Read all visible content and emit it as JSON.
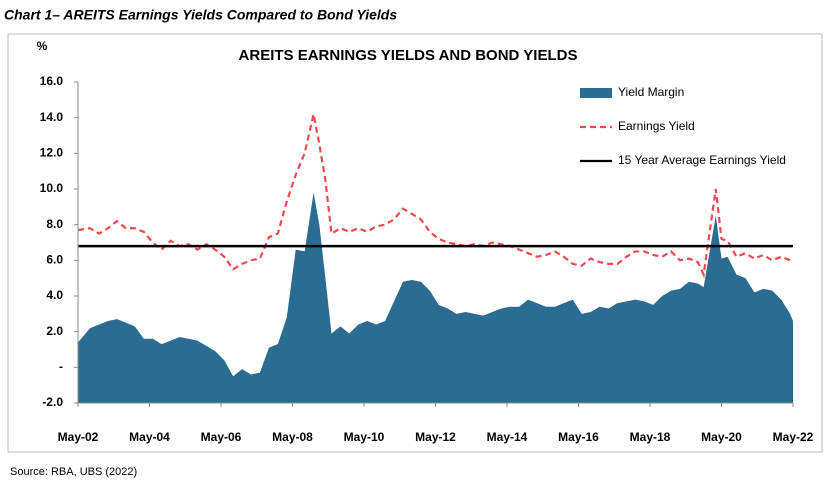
{
  "header": {
    "title": "Chart 1– AREITS Earnings Yields Compared to Bond Yields"
  },
  "chart_data": {
    "type": "area-line",
    "title": "AREITS EARNINGS YIELDS AND BOND YIELDS",
    "y_label": "%",
    "x": [
      2002.33,
      2002.67,
      2002.92,
      2003.17,
      2003.42,
      2003.67,
      2003.92,
      2004.17,
      2004.42,
      2004.67,
      2004.92,
      2005.17,
      2005.42,
      2005.67,
      2005.92,
      2006.17,
      2006.42,
      2006.67,
      2006.92,
      2007.17,
      2007.42,
      2007.67,
      2007.92,
      2008.17,
      2008.42,
      2008.67,
      2008.92,
      2009.08,
      2009.25,
      2009.42,
      2009.67,
      2009.92,
      2010.17,
      2010.42,
      2010.67,
      2010.92,
      2011.17,
      2011.42,
      2011.67,
      2011.92,
      2012.17,
      2012.42,
      2012.67,
      2012.92,
      2013.17,
      2013.42,
      2013.67,
      2013.92,
      2014.17,
      2014.42,
      2014.67,
      2014.92,
      2015.17,
      2015.42,
      2015.67,
      2015.92,
      2016.17,
      2016.42,
      2016.67,
      2016.92,
      2017.17,
      2017.42,
      2017.67,
      2017.92,
      2018.17,
      2018.42,
      2018.67,
      2018.92,
      2019.17,
      2019.42,
      2019.67,
      2019.83,
      2020.17,
      2020.33,
      2020.5,
      2020.75,
      2021.0,
      2021.25,
      2021.5,
      2021.75,
      2022.0,
      2022.25,
      2022.33
    ],
    "series": [
      {
        "name": "Yield Margin",
        "color": "#2b6c93",
        "style": "area",
        "values": [
          1.4,
          2.2,
          2.4,
          2.6,
          2.7,
          2.5,
          2.3,
          1.6,
          1.6,
          1.3,
          1.5,
          1.7,
          1.6,
          1.5,
          1.2,
          0.9,
          0.4,
          -0.5,
          -0.1,
          -0.4,
          -0.3,
          1.1,
          1.3,
          2.8,
          6.6,
          6.5,
          9.8,
          8.0,
          5.0,
          1.9,
          2.3,
          1.9,
          2.4,
          2.6,
          2.4,
          2.6,
          3.7,
          4.8,
          4.9,
          4.8,
          4.3,
          3.5,
          3.3,
          3.0,
          3.1,
          3.0,
          2.9,
          3.1,
          3.3,
          3.4,
          3.4,
          3.8,
          3.6,
          3.4,
          3.4,
          3.6,
          3.8,
          3.0,
          3.1,
          3.4,
          3.3,
          3.6,
          3.7,
          3.8,
          3.7,
          3.5,
          4.0,
          4.3,
          4.4,
          4.8,
          4.7,
          4.5,
          8.5,
          6.1,
          6.2,
          5.2,
          5.0,
          4.2,
          4.4,
          4.3,
          3.8,
          3.0,
          2.6
        ]
      },
      {
        "name": "Earnings Yield",
        "color": "#f0484e",
        "style": "dashed",
        "values": [
          7.7,
          7.8,
          7.5,
          7.8,
          8.2,
          7.8,
          7.8,
          7.6,
          7.0,
          6.6,
          7.1,
          6.8,
          6.9,
          6.6,
          6.9,
          6.6,
          6.2,
          5.5,
          5.8,
          6.0,
          6.1,
          7.3,
          7.5,
          9.3,
          10.8,
          12.0,
          14.2,
          12.5,
          10.5,
          7.5,
          7.8,
          7.6,
          7.8,
          7.6,
          7.9,
          8.0,
          8.3,
          8.9,
          8.6,
          8.3,
          7.6,
          7.2,
          7.0,
          6.9,
          6.8,
          6.9,
          6.8,
          7.0,
          6.9,
          6.8,
          6.6,
          6.4,
          6.2,
          6.3,
          6.5,
          6.2,
          5.8,
          5.7,
          6.1,
          5.9,
          5.8,
          5.8,
          6.2,
          6.5,
          6.5,
          6.3,
          6.2,
          6.5,
          6.0,
          6.1,
          5.9,
          5.2,
          10.0,
          7.2,
          7.1,
          6.2,
          6.4,
          6.1,
          6.3,
          6.0,
          6.2,
          6.0,
          6.0
        ]
      },
      {
        "name": "15 Year Average Earnings Yield",
        "color": "#000000",
        "style": "reference",
        "value": 6.8
      }
    ],
    "xlim": [
      2002.33,
      2022.33
    ],
    "xticks": [
      {
        "value": 2002.33,
        "label": "May-02"
      },
      {
        "value": 2004.33,
        "label": "May-04"
      },
      {
        "value": 2006.33,
        "label": "May-06"
      },
      {
        "value": 2008.33,
        "label": "May-08"
      },
      {
        "value": 2010.33,
        "label": "May-10"
      },
      {
        "value": 2012.33,
        "label": "May-12"
      },
      {
        "value": 2014.33,
        "label": "May-14"
      },
      {
        "value": 2016.33,
        "label": "May-16"
      },
      {
        "value": 2018.33,
        "label": "May-18"
      },
      {
        "value": 2020.33,
        "label": "May-20"
      },
      {
        "value": 2022.33,
        "label": "May-22"
      }
    ],
    "ylim": [
      -2,
      16
    ],
    "yticks": [
      {
        "value": -2,
        "label": "-2.0"
      },
      {
        "value": 0,
        "label": "-"
      },
      {
        "value": 2,
        "label": "2.0"
      },
      {
        "value": 4,
        "label": "4.0"
      },
      {
        "value": 6,
        "label": "6.0"
      },
      {
        "value": 8,
        "label": "8.0"
      },
      {
        "value": 10,
        "label": "10.0"
      },
      {
        "value": 12,
        "label": "12.0"
      },
      {
        "value": 14,
        "label": "14.0"
      },
      {
        "value": 16,
        "label": "16.0"
      }
    ],
    "grid": false
  },
  "footer": {
    "source": "Source: RBA, UBS (2022)"
  }
}
